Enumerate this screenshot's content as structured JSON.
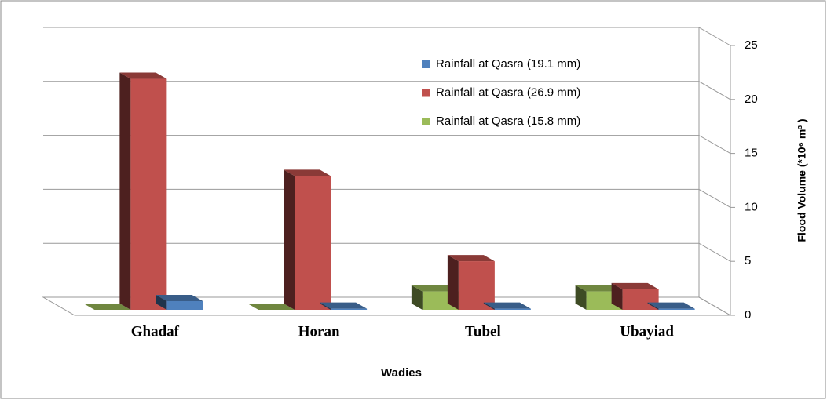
{
  "chart_data": {
    "type": "bar3d",
    "x_label": "Wadies",
    "y_label": "Flood Volume (*10⁶ m³ )",
    "categories": [
      "Ghadaf",
      "Horan",
      "Tubel",
      "Ubayiad"
    ],
    "series": [
      {
        "name": "Rainfall at Qasra (19.1 mm)",
        "color": "#4f81bd",
        "values": [
          0.8,
          0.1,
          0.1,
          0.1
        ]
      },
      {
        "name": "Rainfall at Qasra (26.9 mm)",
        "color": "#c0504d",
        "values": [
          21.4,
          12.4,
          4.5,
          1.9
        ]
      },
      {
        "name": "Rainfall at Qasra (15.8 mm)",
        "color": "#9bbb59",
        "values": [
          0,
          0,
          1.7,
          1.7
        ]
      }
    ],
    "ylim": [
      0,
      25
    ],
    "yticks": [
      0,
      5,
      10,
      15,
      20,
      25
    ],
    "grid": true,
    "legend": "top-right"
  }
}
